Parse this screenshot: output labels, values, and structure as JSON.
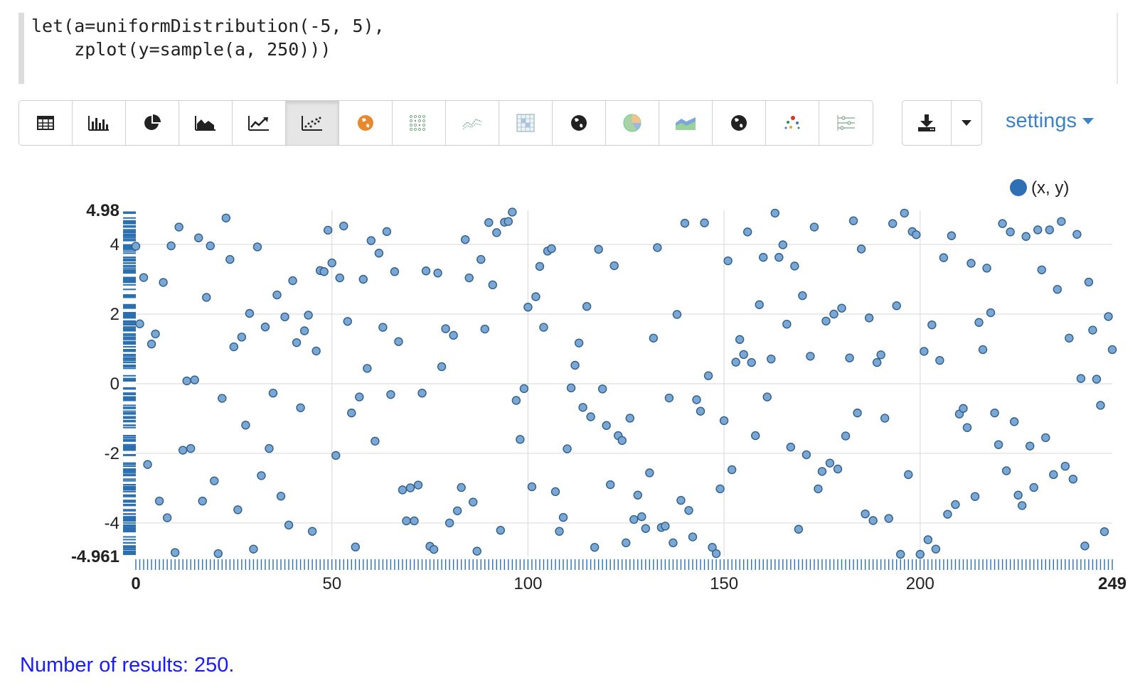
{
  "code": {
    "line1": "let(a=uniformDistribution(-5, 5),",
    "line2": "    zplot(y=sample(a, 250)))"
  },
  "toolbar": {
    "buttons": [
      {
        "name": "table-view-button",
        "icon": "table-icon"
      },
      {
        "name": "bar-chart-button",
        "icon": "bar-chart-icon"
      },
      {
        "name": "pie-chart-button",
        "icon": "pie-chart-icon"
      },
      {
        "name": "area-chart-button",
        "icon": "area-chart-icon"
      },
      {
        "name": "line-chart-button",
        "icon": "line-chart-icon"
      },
      {
        "name": "scatter-chart-button",
        "icon": "scatter-chart-icon",
        "active": true
      },
      {
        "name": "map-button",
        "icon": "orange-globe-icon"
      },
      {
        "name": "scatter-matrix-button",
        "icon": "dot-grid-icon"
      },
      {
        "name": "multi-line-button",
        "icon": "multi-line-icon"
      },
      {
        "name": "heatmap-button",
        "icon": "heatmap-grid-icon"
      },
      {
        "name": "globe-button",
        "icon": "globe-icon"
      },
      {
        "name": "pie-alt-button",
        "icon": "colored-pie-icon"
      },
      {
        "name": "stacked-area-button",
        "icon": "stacked-area-icon"
      },
      {
        "name": "globe-alt-button",
        "icon": "globe-icon"
      },
      {
        "name": "bubble-button",
        "icon": "colored-dots-icon"
      },
      {
        "name": "parallel-coords-button",
        "icon": "sliders-icon"
      }
    ]
  },
  "download": {
    "icon": "download-icon",
    "caret_icon": "caret-down-icon"
  },
  "settings": {
    "label": "settings"
  },
  "colors": {
    "point_fill": "#7ba7d4",
    "point_stroke": "#2f5f8a",
    "axis_tick": "#2a6fb0",
    "link": "#3d82c4",
    "result_text": "#1a1aff"
  },
  "chart_data": {
    "type": "scatter",
    "legend": "(x, y)",
    "legend_position": "top-right",
    "grid": true,
    "xlim": [
      0,
      249
    ],
    "ylim": [
      -4.961,
      4.98
    ],
    "x_ticks": [
      "0",
      "50",
      "100",
      "150",
      "200",
      "249"
    ],
    "y_ticks": [
      "4.98",
      "4",
      "2",
      "0",
      "-2",
      "-4",
      "-4.961"
    ],
    "x": [
      0,
      1,
      2,
      3,
      4,
      5,
      6,
      7,
      8,
      9,
      10,
      11,
      12,
      13,
      14,
      15,
      16,
      17,
      18,
      19,
      20,
      21,
      22,
      23,
      24,
      25,
      26,
      27,
      28,
      29,
      30,
      31,
      32,
      33,
      34,
      35,
      36,
      37,
      38,
      39,
      40,
      41,
      42,
      43,
      44,
      45,
      46,
      47,
      48,
      49,
      50,
      51,
      52,
      53,
      54,
      55,
      56,
      57,
      58,
      59,
      60,
      61,
      62,
      63,
      64,
      65,
      66,
      67,
      68,
      69,
      70,
      71,
      72,
      73,
      74,
      75,
      76,
      77,
      78,
      79,
      80,
      81,
      82,
      83,
      84,
      85,
      86,
      87,
      88,
      89,
      90,
      91,
      92,
      93,
      94,
      95,
      96,
      97,
      98,
      99,
      100,
      101,
      102,
      103,
      104,
      105,
      106,
      107,
      108,
      109,
      110,
      111,
      112,
      113,
      114,
      115,
      116,
      117,
      118,
      119,
      120,
      121,
      122,
      123,
      124,
      125,
      126,
      127,
      128,
      129,
      130,
      131,
      132,
      133,
      134,
      135,
      136,
      137,
      138,
      139,
      140,
      141,
      142,
      143,
      144,
      145,
      146,
      147,
      148,
      149,
      150,
      151,
      152,
      153,
      154,
      155,
      156,
      157,
      158,
      159,
      160,
      161,
      162,
      163,
      164,
      165,
      166,
      167,
      168,
      169,
      170,
      171,
      172,
      173,
      174,
      175,
      176,
      177,
      178,
      179,
      180,
      181,
      182,
      183,
      184,
      185,
      186,
      187,
      188,
      189,
      190,
      191,
      192,
      193,
      194,
      195,
      196,
      197,
      198,
      199,
      200,
      201,
      202,
      203,
      204,
      205,
      206,
      207,
      208,
      209,
      210,
      211,
      212,
      213,
      214,
      215,
      216,
      217,
      218,
      219,
      220,
      221,
      222,
      223,
      224,
      225,
      226,
      227,
      228,
      229,
      230,
      231,
      232,
      233,
      234,
      235,
      236,
      237,
      238,
      239,
      240,
      241,
      242,
      243,
      244,
      245,
      246,
      247,
      248,
      249
    ],
    "y": [
      3.95,
      1.72,
      3.05,
      -2.32,
      1.14,
      1.43,
      -3.37,
      2.91,
      -3.85,
      3.96,
      -4.85,
      4.5,
      -1.91,
      0.08,
      -1.86,
      0.11,
      4.19,
      -3.37,
      2.48,
      3.96,
      -2.79,
      -4.88,
      -0.42,
      4.76,
      3.57,
      1.06,
      -3.62,
      1.34,
      -1.19,
      2.02,
      -4.75,
      3.93,
      -2.64,
      1.63,
      -1.86,
      -0.27,
      2.55,
      -3.23,
      1.92,
      -4.06,
      2.96,
      1.18,
      -0.69,
      1.52,
      1.97,
      -4.24,
      0.94,
      3.25,
      3.22,
      4.41,
      3.47,
      -2.06,
      3.04,
      4.53,
      1.79,
      -0.84,
      -4.69,
      -0.38,
      3.0,
      0.44,
      4.11,
      -1.65,
      3.75,
      1.62,
      4.37,
      -0.31,
      3.22,
      1.21,
      -3.05,
      -3.94,
      -2.99,
      -3.94,
      -2.91,
      -0.27,
      3.24,
      -4.67,
      -4.76,
      3.18,
      0.49,
      1.58,
      -4.0,
      1.39,
      -3.65,
      -2.98,
      4.14,
      3.04,
      -3.4,
      -4.81,
      3.57,
      1.57,
      4.63,
      2.84,
      4.34,
      -4.21,
      4.64,
      4.66,
      4.93,
      -0.48,
      -1.6,
      -0.14,
      2.2,
      -2.96,
      2.5,
      3.37,
      1.62,
      3.81,
      3.88,
      -3.1,
      -4.24,
      -3.84,
      -1.87,
      -0.12,
      0.53,
      1.17,
      -0.68,
      2.22,
      -0.95,
      -4.7,
      3.86,
      -0.15,
      -1.2,
      -2.9,
      3.39,
      -1.49,
      -1.63,
      -4.57,
      -0.99,
      -3.9,
      -3.2,
      -3.82,
      -4.16,
      -2.56,
      1.31,
      3.91,
      -4.13,
      -4.09,
      -0.41,
      -4.57,
      1.99,
      -3.35,
      4.61,
      -3.64,
      -4.4,
      -0.46,
      -0.79,
      4.62,
      0.23,
      -4.7,
      -4.88,
      -3.02,
      -1.06,
      3.53,
      -2.47,
      0.62,
      1.27,
      0.84,
      4.36,
      0.61,
      -1.49,
      2.27,
      3.63,
      -0.38,
      0.71,
      4.9,
      3.63,
      3.99,
      1.71,
      -1.82,
      3.38,
      -4.18,
      2.53,
      -2.04,
      0.79,
      4.5,
      -3.02,
      -2.52,
      1.8,
      -2.28,
      2.0,
      -2.45,
      2.17,
      -1.5,
      0.74,
      4.68,
      -0.84,
      3.87,
      -3.74,
      1.89,
      -3.93,
      0.61,
      0.83,
      -0.99,
      -3.87,
      4.6,
      2.24,
      -4.9,
      4.9,
      -2.61,
      4.37,
      4.28,
      -4.9,
      0.93,
      -4.48,
      1.69,
      -4.75,
      0.67,
      3.62,
      -3.75,
      4.25,
      -3.47,
      -0.87,
      -0.71,
      -1.26,
      3.46,
      -3.24,
      1.76,
      0.98,
      3.32,
      2.04,
      -0.84,
      -1.75,
      4.6,
      -2.5,
      4.36,
      -1.09,
      -3.2,
      -3.5,
      4.23,
      -1.79,
      -2.98,
      4.42,
      3.27,
      -1.55,
      4.42,
      -2.61,
      2.71,
      4.66,
      -2.37,
      1.31,
      -2.74,
      4.29,
      0.15,
      -4.66,
      2.92,
      1.54,
      0.13,
      -0.62,
      -4.25,
      1.93,
      0.98
    ]
  },
  "result": {
    "text": "Number of results: 250."
  }
}
